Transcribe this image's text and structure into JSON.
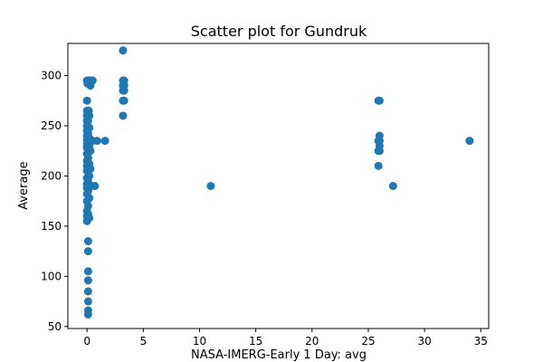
{
  "chart_data": {
    "type": "scatter",
    "title": "Scatter plot for Gundruk",
    "xlabel": "NASA-IMERG-Early 1 Day: avg",
    "ylabel": "Average",
    "xlim": [
      -1.7,
      35.7
    ],
    "ylim": [
      48,
      332
    ],
    "xticks": [
      0,
      5,
      10,
      15,
      20,
      25,
      30,
      35
    ],
    "yticks": [
      50,
      100,
      150,
      200,
      250,
      300
    ],
    "grid": false,
    "marker_color": "#1f77b4",
    "points": [
      {
        "x": 0,
        "y": 295
      },
      {
        "x": 0.1,
        "y": 295
      },
      {
        "x": 0.2,
        "y": 295
      },
      {
        "x": 0.3,
        "y": 295
      },
      {
        "x": 0.4,
        "y": 295
      },
      {
        "x": 0.5,
        "y": 295
      },
      {
        "x": 0.1,
        "y": 293
      },
      {
        "x": 0.3,
        "y": 290
      },
      {
        "x": 0.05,
        "y": 292
      },
      {
        "x": 0,
        "y": 275
      },
      {
        "x": 0,
        "y": 265
      },
      {
        "x": 0.15,
        "y": 265
      },
      {
        "x": 0,
        "y": 260
      },
      {
        "x": 0.2,
        "y": 260
      },
      {
        "x": 0,
        "y": 255
      },
      {
        "x": 0.1,
        "y": 255
      },
      {
        "x": 0,
        "y": 250
      },
      {
        "x": 0.2,
        "y": 248
      },
      {
        "x": 0,
        "y": 245
      },
      {
        "x": 0.1,
        "y": 242
      },
      {
        "x": 0,
        "y": 240
      },
      {
        "x": 0.2,
        "y": 238
      },
      {
        "x": 0,
        "y": 236
      },
      {
        "x": 0.1,
        "y": 235
      },
      {
        "x": 0.3,
        "y": 235
      },
      {
        "x": 0.5,
        "y": 235
      },
      {
        "x": 0.9,
        "y": 235
      },
      {
        "x": 1.6,
        "y": 235
      },
      {
        "x": 0,
        "y": 232
      },
      {
        "x": 0.2,
        "y": 230
      },
      {
        "x": 0,
        "y": 228
      },
      {
        "x": 0.1,
        "y": 225
      },
      {
        "x": 0.3,
        "y": 225
      },
      {
        "x": 0,
        "y": 222
      },
      {
        "x": 0.1,
        "y": 218
      },
      {
        "x": 0,
        "y": 215
      },
      {
        "x": 0.2,
        "y": 212
      },
      {
        "x": 0,
        "y": 210
      },
      {
        "x": 0.1,
        "y": 208
      },
      {
        "x": 0.3,
        "y": 207
      },
      {
        "x": 0,
        "y": 205
      },
      {
        "x": 0.2,
        "y": 200
      },
      {
        "x": 0,
        "y": 198
      },
      {
        "x": 0.1,
        "y": 195
      },
      {
        "x": 0,
        "y": 192
      },
      {
        "x": 0.2,
        "y": 190
      },
      {
        "x": 0.4,
        "y": 190
      },
      {
        "x": 0.7,
        "y": 190
      },
      {
        "x": 0,
        "y": 188
      },
      {
        "x": 0.1,
        "y": 185
      },
      {
        "x": 0,
        "y": 182
      },
      {
        "x": 0.2,
        "y": 178
      },
      {
        "x": 0,
        "y": 175
      },
      {
        "x": 0.1,
        "y": 170
      },
      {
        "x": 0,
        "y": 165
      },
      {
        "x": 0.1,
        "y": 162
      },
      {
        "x": 0,
        "y": 160
      },
      {
        "x": 0.2,
        "y": 158
      },
      {
        "x": 0,
        "y": 155
      },
      {
        "x": 0.1,
        "y": 135
      },
      {
        "x": 0.1,
        "y": 125
      },
      {
        "x": 0.1,
        "y": 105
      },
      {
        "x": 0.1,
        "y": 96
      },
      {
        "x": 0.1,
        "y": 85
      },
      {
        "x": 0.1,
        "y": 75
      },
      {
        "x": 0.1,
        "y": 66
      },
      {
        "x": 0.1,
        "y": 62
      },
      {
        "x": 3.2,
        "y": 325
      },
      {
        "x": 3.2,
        "y": 295
      },
      {
        "x": 3.3,
        "y": 295
      },
      {
        "x": 3.2,
        "y": 290
      },
      {
        "x": 3.3,
        "y": 290
      },
      {
        "x": 3.2,
        "y": 285
      },
      {
        "x": 3.3,
        "y": 285
      },
      {
        "x": 3.2,
        "y": 275
      },
      {
        "x": 3.3,
        "y": 275
      },
      {
        "x": 3.2,
        "y": 260
      },
      {
        "x": 11,
        "y": 190
      },
      {
        "x": 25.9,
        "y": 275
      },
      {
        "x": 26,
        "y": 275
      },
      {
        "x": 26,
        "y": 240
      },
      {
        "x": 25.9,
        "y": 235
      },
      {
        "x": 26,
        "y": 235
      },
      {
        "x": 26,
        "y": 230
      },
      {
        "x": 25.9,
        "y": 225
      },
      {
        "x": 26,
        "y": 225
      },
      {
        "x": 25.9,
        "y": 210
      },
      {
        "x": 27.2,
        "y": 190
      },
      {
        "x": 34,
        "y": 235
      }
    ]
  }
}
